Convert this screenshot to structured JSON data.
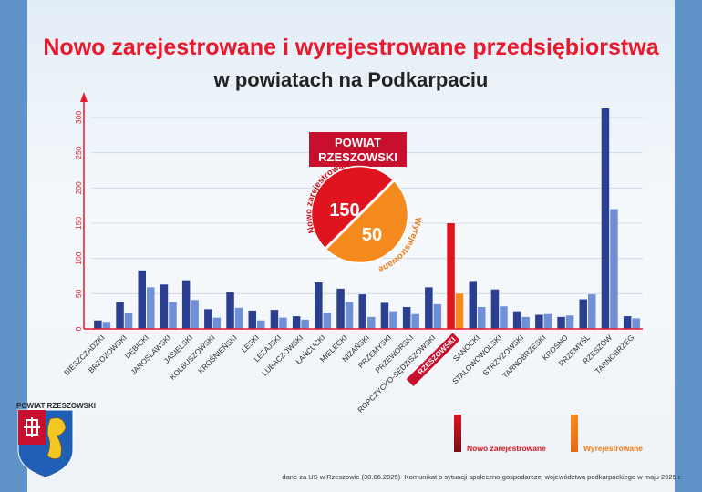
{
  "header": {
    "title": "Nowo zarejestrowane i wyrejestrowane przedsiębiorstwa",
    "subtitle": "w powiatach na Podkarpaciu"
  },
  "highlight": {
    "name": "POWIAT RZESZOWSKI",
    "line1": "POWIAT",
    "line2": "RZESZOWSKI",
    "registered_label": "Nowo zarejestrowane",
    "deregistered_label": "Wyrejestrowane",
    "registered_value": "150",
    "deregistered_value": "50"
  },
  "crest": {
    "label": "POWIAT RZESZOWSKI"
  },
  "footnote": "dane za US w Rzeszowie (30.06.2025)- Komunikat o sytuacji społeczno-gospodarczej województwa podkarpackiego w maju 2025 r.",
  "colors": {
    "registered_dark": "#2a3f8f",
    "deregistered_light": "#6f8fd6",
    "highlight_registered": "#e0141f",
    "highlight_deregistered": "#f58a1f",
    "title_red": "#e8192c",
    "axis_red": "#e8192c"
  },
  "chart_data": {
    "type": "bar",
    "categories": [
      "BIESZCZADZKI",
      "BRZOZOWSKI",
      "DĘBICKI",
      "JAROSŁAWSKI",
      "JASIELSKI",
      "KOLBUSZOWSKI",
      "KROŚNIEŃSKI",
      "LESKI",
      "LEŻAJSKI",
      "LUBACZOWSKI",
      "ŁAŃCUCKI",
      "MIELECKI",
      "NIŻAŃSKI",
      "PRZEMYSKI",
      "PRZEWORSKI",
      "ROPCZYCKO-SĘDZISZOWSKI",
      "RZESZOWSKI",
      "SANOCKI",
      "STALOWOWOLSKI",
      "STRZYŻOWSKI",
      "TARNOBRZESKI",
      "KROSNO",
      "PRZEMYŚL",
      "RZESZÓW",
      "TARNOBRZEG"
    ],
    "highlight_category": "RZESZOWSKI",
    "series": [
      {
        "name": "Nowo zarejestrowane",
        "values": [
          12,
          38,
          83,
          63,
          69,
          28,
          52,
          26,
          27,
          18,
          66,
          57,
          49,
          37,
          31,
          59,
          150,
          68,
          56,
          25,
          20,
          17,
          42,
          313,
          18
        ]
      },
      {
        "name": "Wyrejestrowane",
        "values": [
          10,
          22,
          59,
          38,
          41,
          16,
          30,
          12,
          16,
          13,
          23,
          38,
          17,
          25,
          21,
          35,
          50,
          31,
          32,
          17,
          21,
          19,
          49,
          170,
          15
        ]
      }
    ],
    "y_ticks": [
      0,
      50,
      100,
      150,
      200,
      250,
      300
    ],
    "ylim": [
      0,
      320
    ],
    "grid": true,
    "legend": "bottom-right",
    "xlabel": "",
    "ylabel": ""
  }
}
